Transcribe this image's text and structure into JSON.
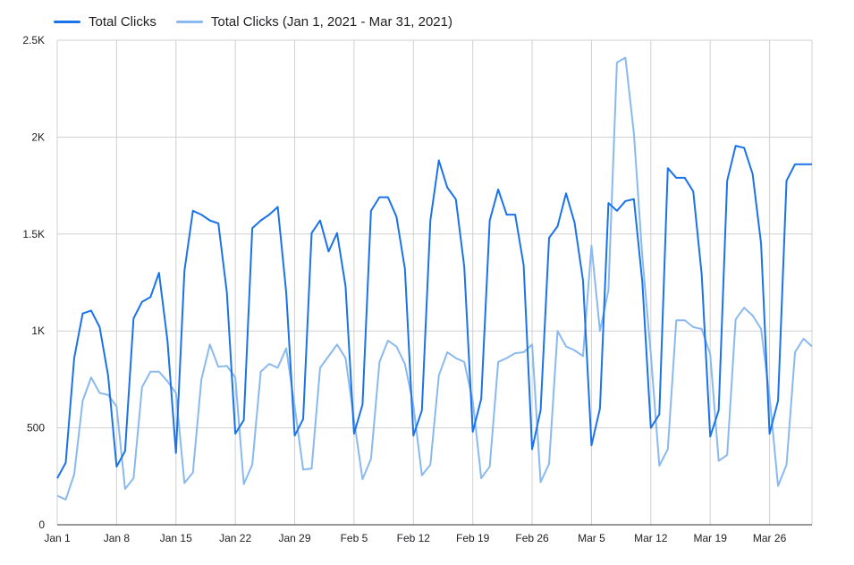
{
  "chart_data": {
    "type": "line",
    "title": "",
    "xlabel": "",
    "ylabel": "",
    "ylim": [
      0,
      2500
    ],
    "y_ticks": [
      0,
      500,
      1000,
      1500,
      2000,
      2500
    ],
    "y_tick_labels": [
      "0",
      "500",
      "1K",
      "1.5K",
      "2K",
      "2.5K"
    ],
    "x_range": [
      "2021-01-01",
      "2021-03-31"
    ],
    "x_ticks": [
      "2021-01-01",
      "2021-01-08",
      "2021-01-15",
      "2021-01-22",
      "2021-01-29",
      "2021-02-05",
      "2021-02-12",
      "2021-02-19",
      "2021-02-26",
      "2021-03-05",
      "2021-03-12",
      "2021-03-19",
      "2021-03-26"
    ],
    "x_tick_labels": [
      "Jan 1",
      "Jan 8",
      "Jan 15",
      "Jan 22",
      "Jan 29",
      "Feb 5",
      "Feb 12",
      "Feb 19",
      "Feb 26",
      "Mar 5",
      "Mar 12",
      "Mar 19",
      "Mar 26"
    ],
    "grid": true,
    "legend_position": "top-left",
    "colors": {
      "gridline": "#d0d0d0",
      "axis": "#333333"
    },
    "series": [
      {
        "name": "Total Clicks",
        "color": "#1a73e8",
        "x": [
          "2021-01-01",
          "2021-01-02",
          "2021-01-03",
          "2021-01-04",
          "2021-01-05",
          "2021-01-06",
          "2021-01-07",
          "2021-01-08",
          "2021-01-09",
          "2021-01-10",
          "2021-01-11",
          "2021-01-12",
          "2021-01-13",
          "2021-01-14",
          "2021-01-15",
          "2021-01-16",
          "2021-01-17",
          "2021-01-18",
          "2021-01-19",
          "2021-01-20",
          "2021-01-21",
          "2021-01-22",
          "2021-01-23",
          "2021-01-24",
          "2021-01-25",
          "2021-01-26",
          "2021-01-27",
          "2021-01-28",
          "2021-01-29",
          "2021-01-30",
          "2021-01-31",
          "2021-02-01",
          "2021-02-02",
          "2021-02-03",
          "2021-02-04",
          "2021-02-05",
          "2021-02-06",
          "2021-02-07",
          "2021-02-08",
          "2021-02-09",
          "2021-02-10",
          "2021-02-11",
          "2021-02-12",
          "2021-02-13",
          "2021-02-14",
          "2021-02-15",
          "2021-02-16",
          "2021-02-17",
          "2021-02-18",
          "2021-02-19",
          "2021-02-20",
          "2021-02-21",
          "2021-02-22",
          "2021-02-23",
          "2021-02-24",
          "2021-02-25",
          "2021-02-26",
          "2021-02-27",
          "2021-02-28",
          "2021-03-01",
          "2021-03-02",
          "2021-03-03",
          "2021-03-04",
          "2021-03-05",
          "2021-03-06",
          "2021-03-07",
          "2021-03-08",
          "2021-03-09",
          "2021-03-10",
          "2021-03-11",
          "2021-03-12",
          "2021-03-13",
          "2021-03-14",
          "2021-03-15",
          "2021-03-16",
          "2021-03-17",
          "2021-03-18",
          "2021-03-19",
          "2021-03-20",
          "2021-03-21",
          "2021-03-22",
          "2021-03-23",
          "2021-03-24",
          "2021-03-25",
          "2021-03-26",
          "2021-03-27",
          "2021-03-28",
          "2021-03-29",
          "2021-03-30",
          "2021-03-31"
        ],
        "values": [
          240,
          320,
          860,
          1090,
          1105,
          1020,
          770,
          300,
          380,
          1065,
          1150,
          1175,
          1300,
          950,
          370,
          1310,
          1620,
          1600,
          1570,
          1555,
          1200,
          470,
          540,
          1530,
          1570,
          1600,
          1640,
          1200,
          460,
          545,
          1505,
          1570,
          1410,
          1505,
          1230,
          470,
          620,
          1620,
          1690,
          1690,
          1590,
          1320,
          460,
          590,
          1570,
          1880,
          1740,
          1680,
          1330,
          480,
          650,
          1570,
          1730,
          1600,
          1600,
          1340,
          390,
          590,
          1480,
          1540,
          1710,
          1560,
          1260,
          410,
          600,
          1660,
          1620,
          1670,
          1680,
          1250,
          500,
          570,
          1840,
          1790,
          1790,
          1720,
          1290,
          455,
          590,
          1775,
          1955,
          1945,
          1810,
          1450,
          470,
          640,
          1775,
          1860,
          1860,
          1860
        ]
      },
      {
        "name": "Total Clicks (Jan 1, 2021 - Mar 31, 2021)",
        "color": "#8ab9ef",
        "x": [
          "2021-01-01",
          "2021-01-02",
          "2021-01-03",
          "2021-01-04",
          "2021-01-05",
          "2021-01-06",
          "2021-01-07",
          "2021-01-08",
          "2021-01-09",
          "2021-01-10",
          "2021-01-11",
          "2021-01-12",
          "2021-01-13",
          "2021-01-14",
          "2021-01-15",
          "2021-01-16",
          "2021-01-17",
          "2021-01-18",
          "2021-01-19",
          "2021-01-20",
          "2021-01-21",
          "2021-01-22",
          "2021-01-23",
          "2021-01-24",
          "2021-01-25",
          "2021-01-26",
          "2021-01-27",
          "2021-01-28",
          "2021-01-29",
          "2021-01-30",
          "2021-01-31",
          "2021-02-01",
          "2021-02-02",
          "2021-02-03",
          "2021-02-04",
          "2021-02-05",
          "2021-02-06",
          "2021-02-07",
          "2021-02-08",
          "2021-02-09",
          "2021-02-10",
          "2021-02-11",
          "2021-02-12",
          "2021-02-13",
          "2021-02-14",
          "2021-02-15",
          "2021-02-16",
          "2021-02-17",
          "2021-02-18",
          "2021-02-19",
          "2021-02-20",
          "2021-02-21",
          "2021-02-22",
          "2021-02-23",
          "2021-02-24",
          "2021-02-25",
          "2021-02-26",
          "2021-02-27",
          "2021-02-28",
          "2021-03-01",
          "2021-03-02",
          "2021-03-03",
          "2021-03-04",
          "2021-03-05",
          "2021-03-06",
          "2021-03-07",
          "2021-03-08",
          "2021-03-09",
          "2021-03-10",
          "2021-03-11",
          "2021-03-12",
          "2021-03-13",
          "2021-03-14",
          "2021-03-15",
          "2021-03-16",
          "2021-03-17",
          "2021-03-18",
          "2021-03-19",
          "2021-03-20",
          "2021-03-21",
          "2021-03-22",
          "2021-03-23",
          "2021-03-24",
          "2021-03-25",
          "2021-03-26",
          "2021-03-27",
          "2021-03-28",
          "2021-03-29",
          "2021-03-30",
          "2021-03-31"
        ],
        "values": [
          150,
          130,
          260,
          640,
          760,
          680,
          670,
          610,
          185,
          240,
          710,
          790,
          790,
          740,
          680,
          215,
          270,
          750,
          930,
          815,
          820,
          760,
          210,
          310,
          790,
          830,
          810,
          910,
          610,
          285,
          290,
          810,
          870,
          930,
          860,
          540,
          235,
          340,
          840,
          950,
          920,
          830,
          615,
          255,
          310,
          770,
          890,
          860,
          840,
          640,
          240,
          300,
          840,
          860,
          885,
          890,
          930,
          220,
          315,
          1000,
          920,
          900,
          870,
          1440,
          1000,
          1210,
          2385,
          2410,
          2020,
          1380,
          880,
          305,
          390,
          1055,
          1055,
          1020,
          1010,
          880,
          330,
          360,
          1060,
          1120,
          1080,
          1010,
          660,
          200,
          310,
          890,
          960,
          920
        ]
      }
    ]
  }
}
